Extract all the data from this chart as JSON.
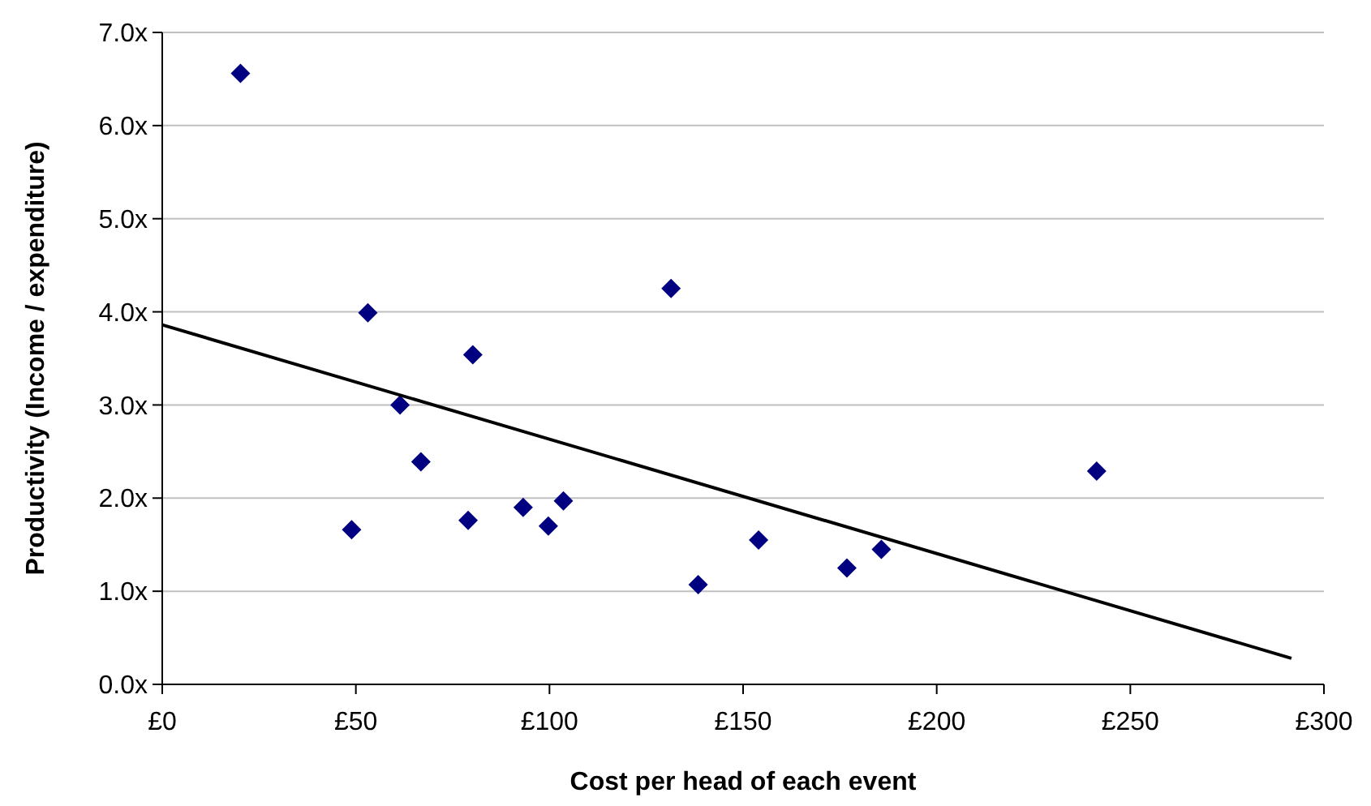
{
  "chart_data": {
    "type": "scatter",
    "xlabel": "Cost per head of each event",
    "ylabel": "Productivity (Income / expenditure)",
    "xlim": [
      0,
      300
    ],
    "ylim": [
      0,
      7
    ],
    "xticks": [
      {
        "value": 0,
        "label": "£0"
      },
      {
        "value": 50,
        "label": "£50"
      },
      {
        "value": 100,
        "label": "£100"
      },
      {
        "value": 150,
        "label": "£150"
      },
      {
        "value": 200,
        "label": "£200"
      },
      {
        "value": 250,
        "label": "£250"
      },
      {
        "value": 300,
        "label": "£300"
      }
    ],
    "yticks": [
      {
        "value": 0,
        "label": "0.0x"
      },
      {
        "value": 1,
        "label": "1.0x"
      },
      {
        "value": 2,
        "label": "2.0x"
      },
      {
        "value": 3,
        "label": "3.0x"
      },
      {
        "value": 4,
        "label": "4.0x"
      },
      {
        "value": 5,
        "label": "5.0x"
      },
      {
        "value": 6,
        "label": "6.0x"
      },
      {
        "value": 7,
        "label": "7.0x"
      }
    ],
    "grid": "y",
    "series": [
      {
        "color": "#000080",
        "marker": "diamond",
        "x": [
          20.2,
          53.1,
          80.2,
          131.4,
          61.4,
          66.8,
          48.9,
          79.0,
          93.2,
          99.7,
          103.6,
          138.4,
          154.0,
          176.8,
          185.7,
          241.3
        ],
        "values": [
          6.56,
          3.99,
          3.54,
          4.25,
          3.0,
          2.39,
          1.66,
          1.76,
          1.9,
          1.7,
          1.97,
          1.07,
          1.55,
          1.25,
          1.45,
          2.29
        ]
      },
      {
        "type": "line",
        "color": "#000000",
        "marker": "none",
        "line_style": "solid",
        "x": [
          0,
          291.6
        ],
        "values": [
          3.86,
          0.28
        ]
      }
    ]
  }
}
